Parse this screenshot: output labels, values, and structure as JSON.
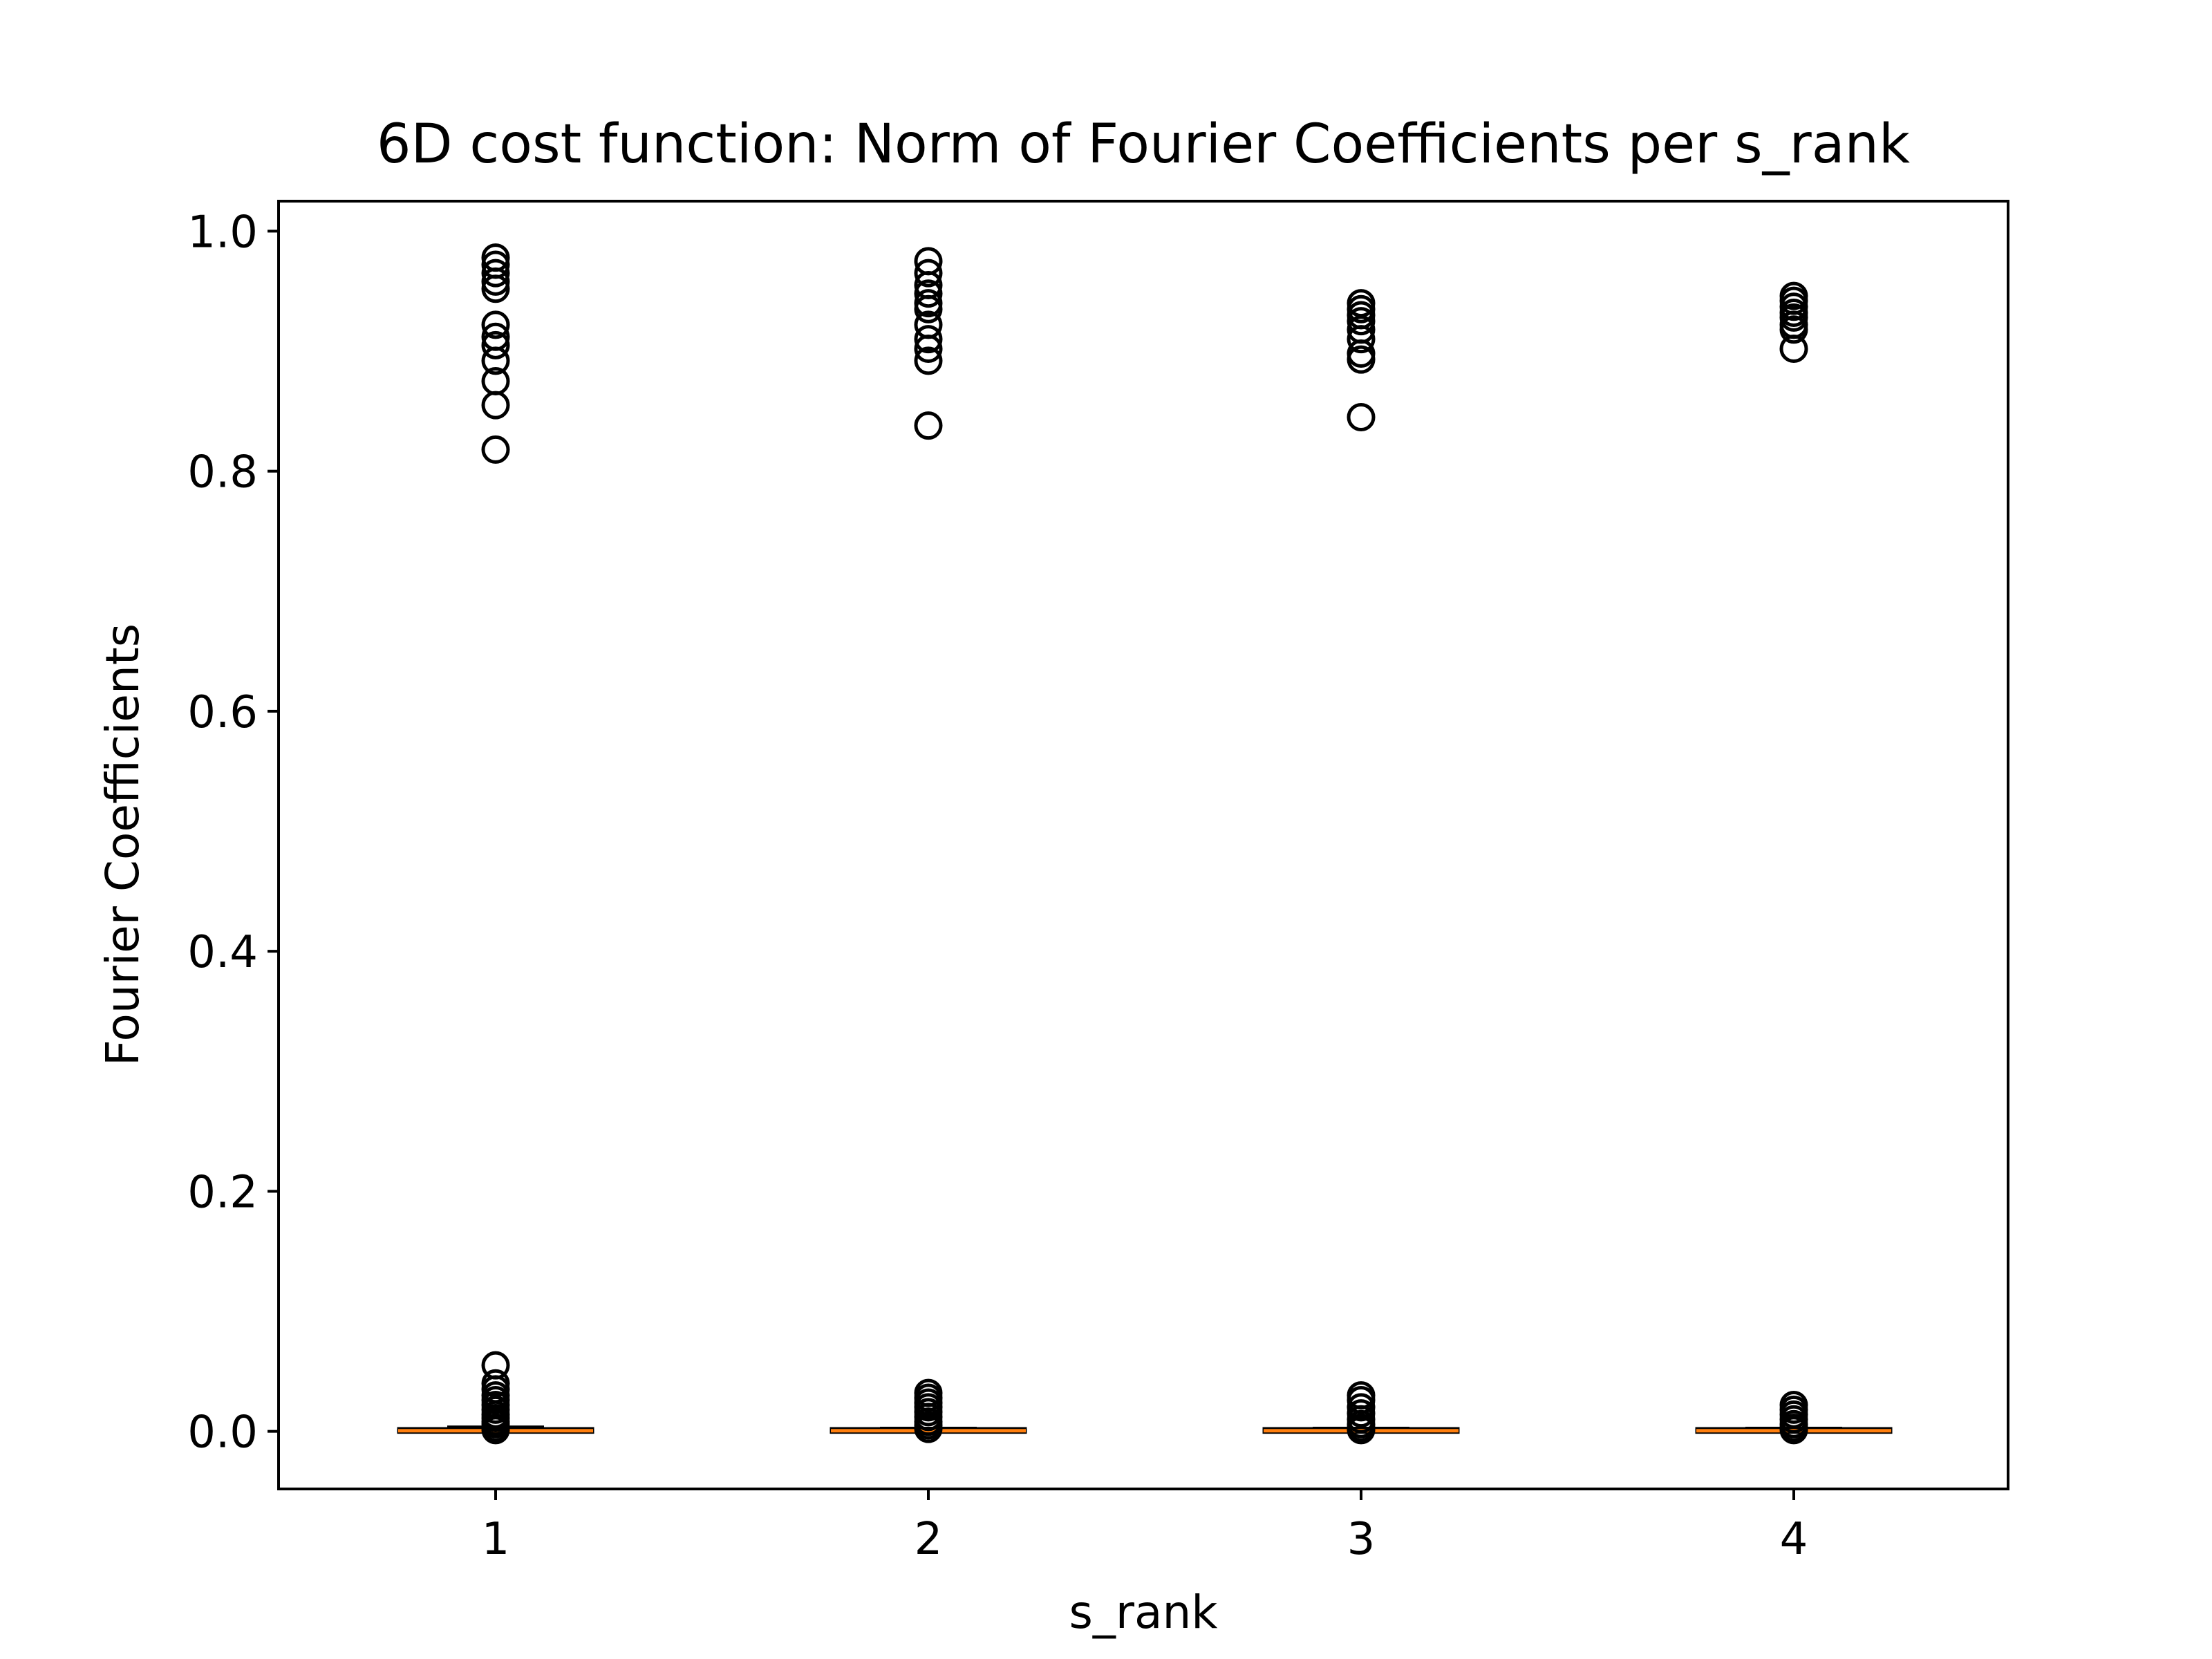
{
  "chart_data": {
    "type": "box",
    "title": "6D cost function: Norm of Fourier Coefficients per s_rank",
    "xlabel": "s_rank",
    "ylabel": "Fourier Coefficients",
    "categories": [
      "1",
      "2",
      "3",
      "4"
    ],
    "ylim": [
      -0.048,
      1.025
    ],
    "yticks": [
      0.0,
      0.2,
      0.4,
      0.6,
      0.8,
      1.0
    ],
    "ytick_labels": [
      "0.0",
      "0.2",
      "0.4",
      "0.6",
      "0.8",
      "1.0"
    ],
    "grid": false,
    "colors": {
      "median": "#ff7f0e",
      "box": "#000000",
      "flier": "#000000"
    },
    "boxes": [
      {
        "category": "1",
        "q1": 0.0,
        "median": 0.0005,
        "q3": 0.0015,
        "whisker_low": 0.0,
        "whisker_high": 0.004,
        "fliers": [
          0.978,
          0.972,
          0.965,
          0.958,
          0.952,
          0.922,
          0.912,
          0.905,
          0.892,
          0.875,
          0.855,
          0.818,
          0.055,
          0.04,
          0.035,
          0.03,
          0.026,
          0.022,
          0.018,
          0.014,
          0.011,
          0.008,
          0.006,
          0.003,
          0.001
        ]
      },
      {
        "category": "2",
        "q1": 0.0,
        "median": 0.0005,
        "q3": 0.0015,
        "whisker_low": 0.0,
        "whisker_high": 0.003,
        "fliers": [
          0.975,
          0.965,
          0.955,
          0.948,
          0.94,
          0.935,
          0.922,
          0.91,
          0.902,
          0.892,
          0.838,
          0.032,
          0.028,
          0.024,
          0.02,
          0.016,
          0.012,
          0.008,
          0.005,
          0.002
        ]
      },
      {
        "category": "3",
        "q1": 0.0,
        "median": 0.0005,
        "q3": 0.0015,
        "whisker_low": 0.0,
        "whisker_high": 0.003,
        "fliers": [
          0.94,
          0.935,
          0.93,
          0.925,
          0.918,
          0.91,
          0.898,
          0.893,
          0.845,
          0.03,
          0.026,
          0.02,
          0.015,
          0.01,
          0.006,
          0.003,
          0.001
        ]
      },
      {
        "category": "4",
        "q1": 0.0,
        "median": 0.0005,
        "q3": 0.0015,
        "whisker_low": 0.0,
        "whisker_high": 0.003,
        "fliers": [
          0.946,
          0.942,
          0.937,
          0.932,
          0.928,
          0.922,
          0.918,
          0.902,
          0.022,
          0.018,
          0.014,
          0.01,
          0.006,
          0.003,
          0.001
        ]
      }
    ]
  }
}
